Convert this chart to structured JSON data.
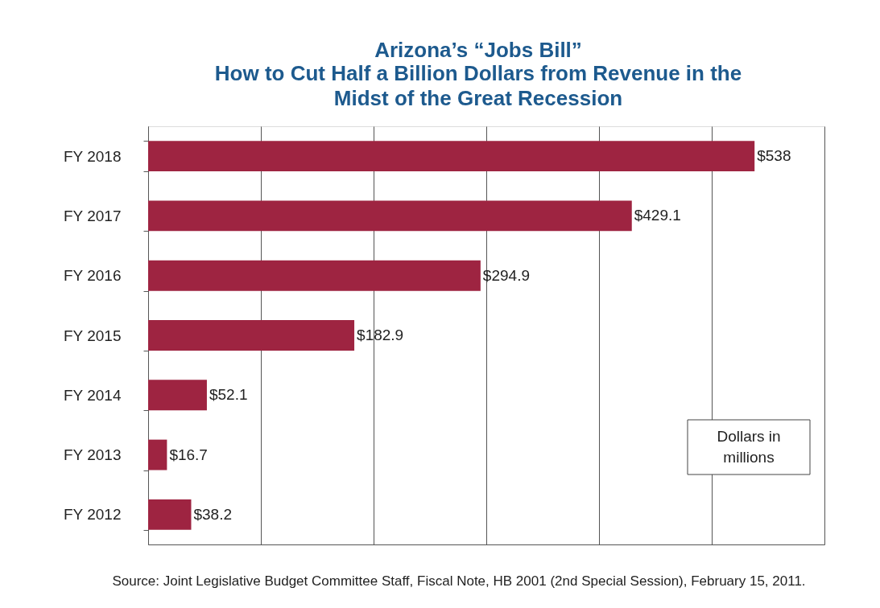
{
  "chart_data": {
    "type": "bar",
    "orientation": "horizontal",
    "title": "Arizona’s “Jobs Bill”",
    "subtitle": "How to Cut Half a Billion Dollars from Revenue in the Midst of the Great Recession",
    "categories": [
      "FY 2018",
      "FY 2017",
      "FY 2016",
      "FY 2015",
      "FY 2014",
      "FY 2013",
      "FY 2012"
    ],
    "values": [
      538,
      429.1,
      294.9,
      182.9,
      52.1,
      16.7,
      38.2
    ],
    "value_labels": [
      "$538",
      "$429.1",
      "$294.9",
      "$182.9",
      "$52.1",
      "$16.7",
      "$38.2"
    ],
    "color": "#9e2441",
    "xlim": [
      0,
      600
    ],
    "xticks": [
      {
        "value": 0,
        "label": null
      },
      {
        "value": 100,
        "label": null
      },
      {
        "value": 200,
        "label": null
      },
      {
        "value": 300,
        "label": null
      },
      {
        "value": 400,
        "label": null
      },
      {
        "value": 500,
        "label": null
      },
      {
        "value": 600,
        "label": null
      }
    ],
    "grid": "x",
    "legend": false,
    "annotations": [
      "Dollars in millions",
      "Source: Joint Legislative Budget Committee Staff, Fiscal Note, HB 2001 (2nd Special Session), February 15, 2011."
    ]
  }
}
